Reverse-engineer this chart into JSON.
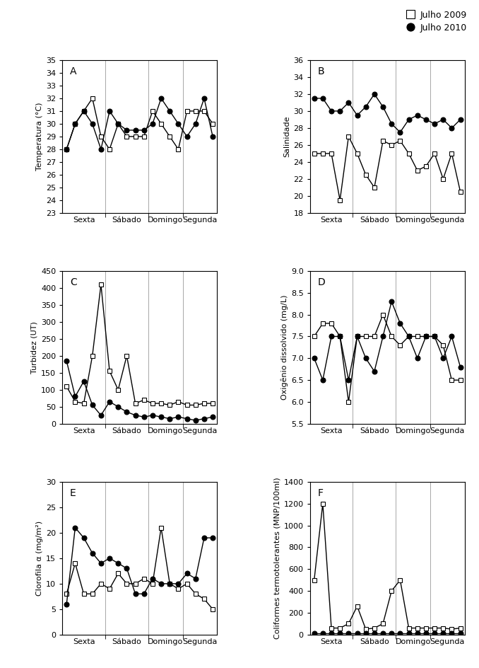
{
  "legend": {
    "julho2009_label": "Julho 2009",
    "julho2010_label": "Julho 2010"
  },
  "panel_A": {
    "title": "A",
    "ylabel": "Temperatura (°C)",
    "ylim": [
      23,
      35
    ],
    "yticks": [
      23,
      24,
      25,
      26,
      27,
      28,
      29,
      30,
      31,
      32,
      33,
      34,
      35
    ],
    "y2009": [
      28.0,
      30.0,
      31.0,
      32.0,
      29.0,
      28.0,
      30.0,
      29.0,
      29.0,
      29.0,
      31.0,
      30.0,
      29.0,
      28.0,
      31.0,
      31.0,
      31.0,
      30.0
    ],
    "y2010": [
      28.0,
      30.0,
      31.0,
      30.0,
      28.0,
      31.0,
      30.0,
      29.5,
      29.5,
      29.5,
      30.0,
      32.0,
      31.0,
      30.0,
      29.0,
      30.0,
      32.0,
      29.0
    ]
  },
  "panel_B": {
    "title": "B",
    "ylabel": "Salinidade",
    "ylim": [
      18,
      36
    ],
    "yticks": [
      18,
      20,
      22,
      24,
      26,
      28,
      30,
      32,
      34,
      36
    ],
    "y2009": [
      25.0,
      25.0,
      25.0,
      19.5,
      27.0,
      25.0,
      22.5,
      21.0,
      26.5,
      26.0,
      26.5,
      25.0,
      23.0,
      23.5,
      25.0,
      22.0,
      25.0,
      20.5
    ],
    "y2010": [
      31.5,
      31.5,
      30.0,
      30.0,
      31.0,
      29.5,
      30.5,
      32.0,
      30.5,
      28.5,
      27.5,
      29.0,
      29.5,
      29.0,
      28.5,
      29.0,
      28.0,
      29.0
    ]
  },
  "panel_C": {
    "title": "C",
    "ylabel": "Turbidez (UT)",
    "ylim": [
      0,
      450
    ],
    "yticks": [
      0,
      50,
      100,
      150,
      200,
      250,
      300,
      350,
      400,
      450
    ],
    "y2009": [
      110.0,
      65.0,
      60.0,
      200.0,
      410.0,
      155.0,
      100.0,
      200.0,
      60.0,
      70.0,
      60.0,
      60.0,
      55.0,
      65.0,
      55.0,
      55.0,
      60.0,
      60.0
    ],
    "y2010": [
      185.0,
      80.0,
      125.0,
      55.0,
      25.0,
      65.0,
      50.0,
      35.0,
      25.0,
      20.0,
      25.0,
      20.0,
      15.0,
      20.0,
      15.0,
      10.0,
      15.0,
      20.0
    ]
  },
  "panel_D": {
    "title": "D",
    "ylabel": "Oxigênio dissolvido (mg/L)",
    "ylim": [
      5.5,
      9.0
    ],
    "yticks": [
      5.5,
      6.0,
      6.5,
      7.0,
      7.5,
      8.0,
      8.5,
      9.0
    ],
    "y2009": [
      7.5,
      7.8,
      7.8,
      7.5,
      6.0,
      7.5,
      7.5,
      7.5,
      8.0,
      7.5,
      7.3,
      7.5,
      7.5,
      7.5,
      7.5,
      7.3,
      6.5,
      6.5
    ],
    "y2010": [
      7.0,
      6.5,
      7.5,
      7.5,
      6.5,
      7.5,
      7.0,
      6.7,
      7.5,
      8.3,
      7.8,
      7.5,
      7.0,
      7.5,
      7.5,
      7.0,
      7.5,
      6.8
    ]
  },
  "panel_E": {
    "title": "E",
    "ylabel": "Clorofila α (mg/m²)",
    "ylim": [
      0,
      30
    ],
    "yticks": [
      0,
      5,
      10,
      15,
      20,
      25,
      30
    ],
    "y2009": [
      8.0,
      14.0,
      8.0,
      8.0,
      10.0,
      9.0,
      12.0,
      10.0,
      10.0,
      11.0,
      10.0,
      21.0,
      10.0,
      9.0,
      10.0,
      8.0,
      7.0,
      5.0
    ],
    "y2010": [
      6.0,
      21.0,
      19.0,
      16.0,
      14.0,
      15.0,
      14.0,
      13.0,
      8.0,
      8.0,
      11.0,
      10.0,
      10.0,
      10.0,
      12.0,
      11.0,
      19.0,
      19.0
    ]
  },
  "panel_F": {
    "title": "F",
    "ylabel": "Coliformes termotolerantes (MNP/100ml)",
    "ylim": [
      0,
      1400
    ],
    "yticks": [
      0,
      200,
      400,
      600,
      800,
      1000,
      1200,
      1400
    ],
    "y2009": [
      500.0,
      1200.0,
      60.0,
      60.0,
      100.0,
      260.0,
      50.0,
      60.0,
      100.0,
      400.0,
      500.0,
      60.0,
      60.0,
      60.0,
      60.0,
      60.0,
      50.0,
      60.0
    ],
    "y2010": [
      10.0,
      10.0,
      10.0,
      10.0,
      10.0,
      10.0,
      10.0,
      10.0,
      10.0,
      10.0,
      10.0,
      10.0,
      10.0,
      10.0,
      10.0,
      10.0,
      10.0,
      10.0
    ]
  },
  "n_points": 18,
  "day_dividers": [
    4.5,
    9.5,
    13.5
  ],
  "day_centers": [
    2.0,
    7.0,
    11.5,
    15.5
  ],
  "day_labels": [
    "Sexta",
    "Sábado",
    "Domingo",
    "Segunda"
  ],
  "linewidth": 1.0,
  "markersize": 5
}
